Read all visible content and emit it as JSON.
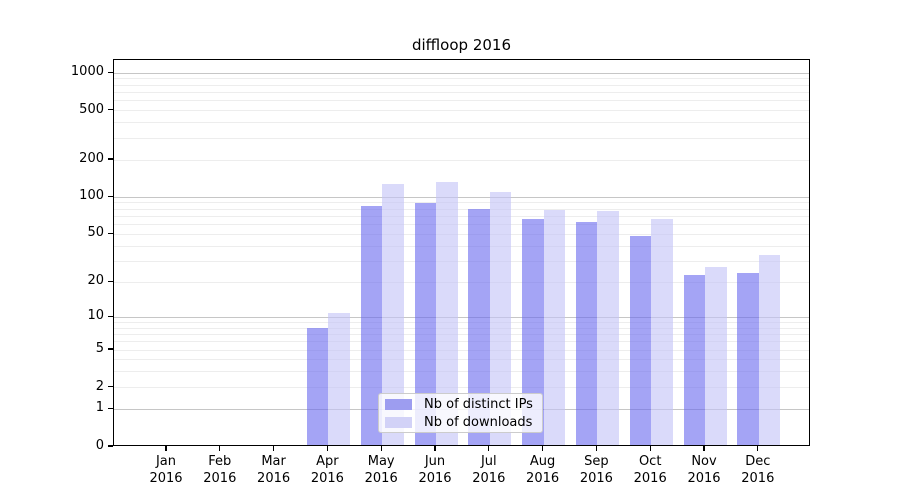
{
  "title": "diffloop 2016",
  "legend": {
    "items": [
      {
        "label": "Nb of distinct IPs",
        "swatch_color": "#9d9df0"
      },
      {
        "label": "Nb of downloads",
        "swatch_color": "#d2d2f7"
      }
    ]
  },
  "chart_data": {
    "type": "bar",
    "title": "diffloop 2016",
    "categories": [
      "Jan 2016",
      "Feb 2016",
      "Mar 2016",
      "Apr 2016",
      "May 2016",
      "Jun 2016",
      "Jul 2016",
      "Aug 2016",
      "Sep 2016",
      "Oct 2016",
      "Nov 2016",
      "Dec 2016"
    ],
    "series": [
      {
        "name": "Nb of distinct IPs",
        "color": "#a6a6f2",
        "bar_rgba": "rgba(104,104,238,0.60)",
        "values": [
          0,
          0,
          0,
          8,
          85,
          90,
          80,
          67,
          63,
          48,
          23,
          24
        ]
      },
      {
        "name": "Nb of downloads",
        "color": "#d8d8f8",
        "bar_rgba": "rgba(195,195,247,0.62)",
        "values": [
          0,
          0,
          0,
          11,
          128,
          132,
          110,
          79,
          78,
          66,
          27,
          34
        ]
      }
    ],
    "xlabel": "",
    "ylabel": "",
    "yscale": "log1p",
    "yticks": [
      0,
      1,
      2,
      5,
      10,
      20,
      50,
      100,
      200,
      500,
      1000
    ],
    "yticks_minor": [
      3,
      4,
      6,
      7,
      8,
      9,
      30,
      40,
      60,
      70,
      80,
      90,
      300,
      400,
      600,
      700,
      800,
      900
    ],
    "ylim": [
      0,
      1270
    ],
    "grid": true,
    "grid_major_color": "#c6c6c6",
    "grid_minor_color": "#ededed",
    "legend_position": "lower center"
  }
}
